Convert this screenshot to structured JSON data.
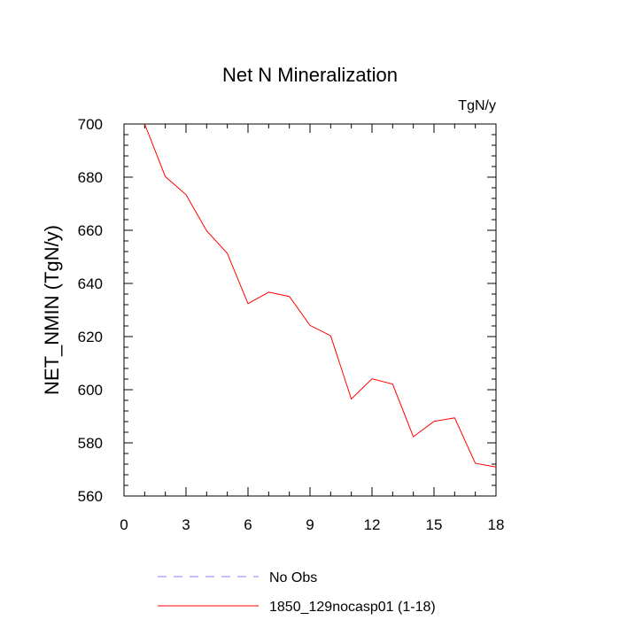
{
  "chart_data": {
    "type": "line",
    "title": "Net N Mineralization",
    "units": "TgN/y",
    "xlabel": "",
    "ylabel": "NET_NMIN  (TgN/y)",
    "xlim": [
      0,
      18
    ],
    "ylim": [
      560,
      700
    ],
    "xticks": [
      0,
      3,
      6,
      9,
      12,
      15,
      18
    ],
    "xtick_labels": [
      "0",
      "3",
      "6",
      "9",
      "12",
      "15",
      "18"
    ],
    "yticks": [
      560,
      580,
      600,
      620,
      640,
      660,
      680,
      700
    ],
    "ytick_labels": [
      "560",
      "580",
      "600",
      "620",
      "640",
      "660",
      "680",
      "700"
    ],
    "x_minor_step": 1,
    "y_minor_step": 4,
    "series": [
      {
        "name": "1850_129nocasp01 (1-18)",
        "color": "#ff0000",
        "dash": "solid",
        "x": [
          1,
          2,
          3,
          4,
          5,
          6,
          7,
          8,
          9,
          10,
          11,
          12,
          13,
          14,
          15,
          16,
          17,
          18
        ],
        "y": [
          700,
          680.2,
          673.4,
          659.8,
          651.3,
          632.4,
          636.7,
          635.1,
          624.2,
          620.3,
          596.5,
          604.1,
          602.1,
          582.3,
          588.1,
          589.4,
          572.3,
          570.9
        ]
      }
    ],
    "legend": [
      {
        "label": "No Obs",
        "color": "#8080ff",
        "dash": "dashed"
      },
      {
        "label": "1850_129nocasp01 (1-18)",
        "color": "#ff0000",
        "dash": "solid"
      }
    ]
  }
}
